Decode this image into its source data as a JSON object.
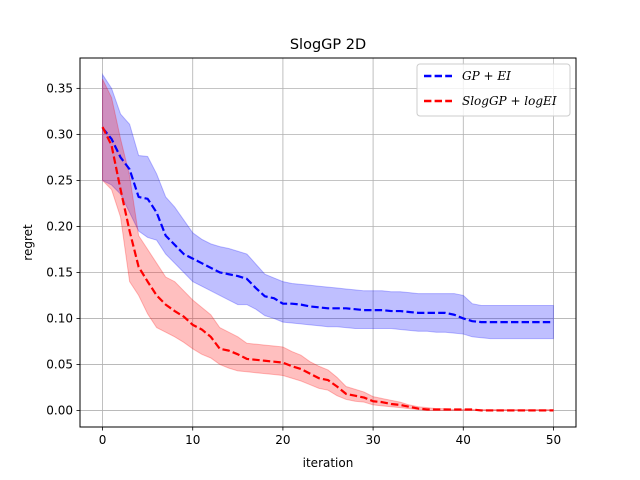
{
  "chart_data": {
    "type": "line",
    "title": "SlogGP 2D",
    "xlabel": "iteration",
    "ylabel": "regret",
    "xlim": [
      -2.5,
      52.5
    ],
    "ylim": [
      -0.018,
      0.383
    ],
    "xticks": [
      0,
      10,
      20,
      30,
      40,
      50
    ],
    "yticks": [
      0.0,
      0.05,
      0.1,
      0.15,
      0.2,
      0.25,
      0.3,
      0.35
    ],
    "ytick_labels": [
      "0.00",
      "0.05",
      "0.10",
      "0.15",
      "0.20",
      "0.25",
      "0.30",
      "0.35"
    ],
    "grid": true,
    "legend_position": "top-right",
    "series": [
      {
        "name": "GP + EI",
        "color": "#0000ff",
        "band_color": "#0000ff",
        "band_opacity": 0.25,
        "line_style": "dashed",
        "x": [
          0,
          1,
          2,
          3,
          4,
          5,
          6,
          7,
          8,
          9,
          10,
          11,
          12,
          13,
          14,
          15,
          16,
          17,
          18,
          19,
          20,
          21,
          22,
          23,
          24,
          25,
          26,
          27,
          28,
          29,
          30,
          31,
          32,
          33,
          34,
          35,
          36,
          37,
          38,
          39,
          40,
          41,
          42,
          43,
          44,
          45,
          46,
          47,
          48,
          49,
          50
        ],
        "mean": [
          0.307,
          0.295,
          0.275,
          0.262,
          0.232,
          0.23,
          0.215,
          0.19,
          0.18,
          0.17,
          0.165,
          0.16,
          0.155,
          0.15,
          0.148,
          0.146,
          0.143,
          0.133,
          0.124,
          0.122,
          0.116,
          0.116,
          0.115,
          0.113,
          0.112,
          0.111,
          0.111,
          0.111,
          0.11,
          0.109,
          0.109,
          0.109,
          0.108,
          0.108,
          0.107,
          0.106,
          0.106,
          0.106,
          0.106,
          0.104,
          0.1,
          0.097,
          0.096,
          0.096,
          0.096,
          0.096,
          0.096,
          0.096,
          0.096,
          0.096,
          0.096
        ],
        "lower": [
          0.25,
          0.245,
          0.235,
          0.215,
          0.195,
          0.188,
          0.185,
          0.17,
          0.16,
          0.15,
          0.14,
          0.135,
          0.13,
          0.125,
          0.12,
          0.115,
          0.115,
          0.11,
          0.103,
          0.1,
          0.096,
          0.095,
          0.094,
          0.093,
          0.092,
          0.091,
          0.091,
          0.09,
          0.089,
          0.089,
          0.089,
          0.089,
          0.089,
          0.088,
          0.087,
          0.086,
          0.086,
          0.085,
          0.085,
          0.084,
          0.083,
          0.08,
          0.079,
          0.078,
          0.078,
          0.078,
          0.078,
          0.078,
          0.078,
          0.078,
          0.078
        ],
        "upper": [
          0.365,
          0.35,
          0.322,
          0.311,
          0.277,
          0.276,
          0.257,
          0.232,
          0.221,
          0.207,
          0.193,
          0.186,
          0.181,
          0.178,
          0.176,
          0.173,
          0.17,
          0.159,
          0.148,
          0.144,
          0.14,
          0.138,
          0.137,
          0.136,
          0.135,
          0.134,
          0.133,
          0.132,
          0.131,
          0.13,
          0.13,
          0.13,
          0.129,
          0.129,
          0.128,
          0.127,
          0.127,
          0.127,
          0.127,
          0.127,
          0.125,
          0.116,
          0.114,
          0.114,
          0.114,
          0.114,
          0.114,
          0.114,
          0.114,
          0.114,
          0.114
        ]
      },
      {
        "name": "SlogGP + logEI",
        "color": "#ff0000",
        "band_color": "#ff0000",
        "band_opacity": 0.25,
        "line_style": "dashed",
        "x": [
          0,
          1,
          2,
          3,
          4,
          5,
          6,
          7,
          8,
          9,
          10,
          11,
          12,
          13,
          14,
          15,
          16,
          17,
          18,
          19,
          20,
          21,
          22,
          23,
          24,
          25,
          26,
          27,
          28,
          29,
          30,
          31,
          32,
          33,
          34,
          35,
          36,
          37,
          38,
          39,
          40,
          41,
          42,
          43,
          44,
          45,
          46,
          47,
          48,
          49,
          50
        ],
        "mean": [
          0.308,
          0.288,
          0.24,
          0.195,
          0.156,
          0.14,
          0.125,
          0.115,
          0.108,
          0.102,
          0.093,
          0.088,
          0.08,
          0.067,
          0.065,
          0.061,
          0.056,
          0.055,
          0.054,
          0.053,
          0.052,
          0.048,
          0.045,
          0.04,
          0.035,
          0.033,
          0.026,
          0.018,
          0.016,
          0.014,
          0.01,
          0.009,
          0.007,
          0.006,
          0.004,
          0.002,
          0.001,
          0.001,
          0.001,
          0.001,
          0.001,
          0.001,
          0.0,
          0.0,
          0.0,
          0.0,
          0.0,
          0.0,
          0.0,
          0.0,
          0.0
        ],
        "lower": [
          0.25,
          0.24,
          0.21,
          0.14,
          0.125,
          0.105,
          0.09,
          0.085,
          0.08,
          0.074,
          0.067,
          0.061,
          0.057,
          0.05,
          0.046,
          0.043,
          0.042,
          0.041,
          0.04,
          0.039,
          0.038,
          0.035,
          0.032,
          0.028,
          0.024,
          0.022,
          0.016,
          0.012,
          0.01,
          0.009,
          0.006,
          0.005,
          0.004,
          0.003,
          0.002,
          0.001,
          0.0,
          0.0,
          0.0,
          0.0,
          0.0,
          0.0,
          0.0,
          0.0,
          0.0,
          0.0,
          0.0,
          0.0,
          0.0,
          0.0,
          0.0
        ],
        "upper": [
          0.36,
          0.34,
          0.295,
          0.255,
          0.19,
          0.175,
          0.16,
          0.145,
          0.14,
          0.13,
          0.12,
          0.112,
          0.104,
          0.09,
          0.085,
          0.08,
          0.073,
          0.072,
          0.071,
          0.07,
          0.069,
          0.064,
          0.06,
          0.053,
          0.048,
          0.044,
          0.036,
          0.026,
          0.023,
          0.02,
          0.015,
          0.013,
          0.011,
          0.009,
          0.006,
          0.004,
          0.003,
          0.002,
          0.002,
          0.001,
          0.001,
          0.001,
          0.001,
          0.001,
          0.001,
          0.001,
          0.001,
          0.001,
          0.001,
          0.001,
          0.001
        ]
      }
    ]
  }
}
